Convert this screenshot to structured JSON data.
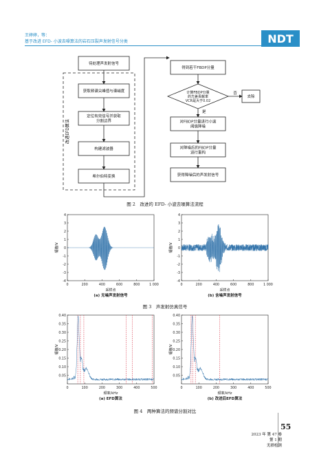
{
  "header": {
    "authors": "王婷婷，等：",
    "title": "基于改进 EFD- 小波去噪算法的岩石压裂声发射信号分类",
    "logo": "NDT"
  },
  "flowchart": {
    "caption": "图 2　改进的 EFD- 小波去噪算法流程",
    "group_label": "改进EFD算法",
    "left_boxes": [
      "待处理声发射信号",
      "获取频谱尖峰值与谱峭度",
      "定位有效信号并获取\n分割边界",
      "构建滤波器",
      "希尔伯特变换"
    ],
    "right_boxes": [
      "得到若干FBDP分量",
      "对FBDP分量进行小波\n阈值降噪",
      "对降噪后的FBDP分量\n进行重构",
      "获得降噪后的声发射信号"
    ],
    "decision": "计算FBDP分量\n的方差贡献率\nVCR是大于0.02",
    "remove": "去除",
    "no": "否",
    "yes": "是"
  },
  "figure3": {
    "caption": "图 3　声发射仿真信号",
    "sub_a": "(a) 无噪声发射信号",
    "sub_b": "(b) 含噪声发射信号",
    "xlabel": "采样点",
    "ylabel": "幅值/V"
  },
  "figure4": {
    "caption": "图 4　两种算法的频谱分割对比",
    "sub_a": "(a) EFD算法",
    "sub_b": "(b) 改进后EFD算法",
    "xlabel": "频率/kHz",
    "ylabel": "幅值/V"
  },
  "footer": {
    "page_number": "55",
    "volume": "2023 年 第 47 卷 第 1 期",
    "journal": "无损检测"
  },
  "colors": {
    "accent": "#2a8fc7",
    "signal": "#2c6fa8",
    "boundary": "#e05a6a"
  },
  "chart_data": [
    {
      "type": "line",
      "name": "fig3a",
      "x_range": [
        0,
        1000
      ],
      "ylim": [
        -4,
        4
      ],
      "xticks": [
        "0",
        "200",
        "400",
        "600",
        "800",
        "1 000"
      ],
      "yticks": [
        "4",
        "3",
        "2",
        "1",
        "0",
        "-1",
        "-2",
        "-3",
        "-4"
      ],
      "envelope": [
        {
          "center": 330,
          "width": 40,
          "amp": 1.6
        },
        {
          "center": 430,
          "width": 45,
          "amp": 2.7
        }
      ]
    },
    {
      "type": "line",
      "name": "fig3b",
      "x_range": [
        0,
        1000
      ],
      "ylim": [
        -4,
        4
      ],
      "xticks": [
        "0",
        "200",
        "400",
        "600",
        "800",
        "1 000"
      ],
      "yticks": [
        "4",
        "3",
        "2",
        "1",
        "0",
        "-1",
        "-2",
        "-3",
        "-4"
      ],
      "noise": 0.4,
      "envelope": [
        {
          "center": 330,
          "width": 40,
          "amp": 1.6
        },
        {
          "center": 430,
          "width": 45,
          "amp": 2.7
        }
      ]
    },
    {
      "type": "line",
      "name": "fig4a",
      "x_range": [
        0,
        500
      ],
      "ylim": [
        0,
        0.4
      ],
      "xticks": [
        "0",
        "100",
        "200",
        "300",
        "400",
        "500"
      ],
      "yticks": [
        "0.40",
        "0.35",
        "0.30",
        "0.25",
        "0.20",
        "0.15",
        "0.10",
        "0.05"
      ],
      "boundaries": [
        60,
        75,
        95,
        340,
        375,
        490
      ]
    },
    {
      "type": "line",
      "name": "fig4b",
      "x_range": [
        0,
        500
      ],
      "ylim": [
        0,
        0.4
      ],
      "xticks": [
        "0",
        "100",
        "200",
        "300",
        "400",
        "500"
      ],
      "yticks": [
        "0.40",
        "0.35",
        "0.30",
        "0.25",
        "0.20",
        "0.15",
        "0.10",
        "0.05"
      ],
      "boundaries": [
        55,
        65,
        80,
        220
      ]
    }
  ]
}
